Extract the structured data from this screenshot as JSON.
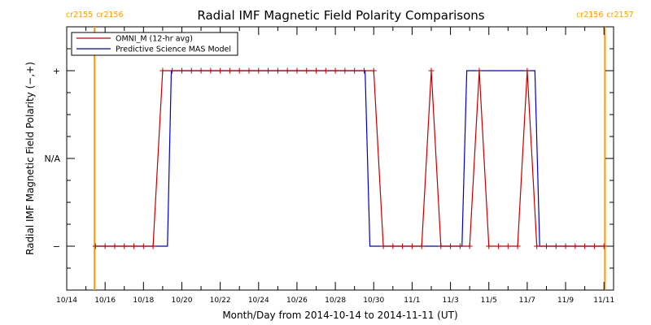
{
  "chart_data": {
    "type": "line",
    "title": "Radial IMF Magnetic Field Polarity Comparisons",
    "xlabel": "Month/Day from 2014-10-14 to 2014-11-11 (UT)",
    "ylabel": "Radial IMF Magnetic Field Polarity (−,+)",
    "x_unit": "days since 2014-10-14 00:00 UT",
    "xlim": [
      0,
      28.5
    ],
    "ylim": [
      -1.5,
      1.5
    ],
    "x_ticks": [
      {
        "x": 0,
        "label": "10/14"
      },
      {
        "x": 2,
        "label": "10/16"
      },
      {
        "x": 4,
        "label": "10/18"
      },
      {
        "x": 6,
        "label": "10/20"
      },
      {
        "x": 8,
        "label": "10/22"
      },
      {
        "x": 10,
        "label": "10/24"
      },
      {
        "x": 12,
        "label": "10/26"
      },
      {
        "x": 14,
        "label": "10/28"
      },
      {
        "x": 16,
        "label": "10/30"
      },
      {
        "x": 18,
        "label": "11/1"
      },
      {
        "x": 20,
        "label": "11/3"
      },
      {
        "x": 22,
        "label": "11/5"
      },
      {
        "x": 24,
        "label": "11/7"
      },
      {
        "x": 26,
        "label": "11/9"
      },
      {
        "x": 28,
        "label": "11/11"
      }
    ],
    "y_ticks": [
      {
        "y": 1,
        "label": "+"
      },
      {
        "y": 0,
        "label": "N/A"
      },
      {
        "y": -1,
        "label": "−"
      }
    ],
    "series": [
      {
        "name": "OMNI_M (12-hr avg)",
        "color": "#c00000",
        "markers": "plus",
        "x": [
          1.5,
          2.0,
          2.5,
          3.0,
          3.5,
          4.0,
          4.5,
          5.0,
          5.5,
          6.0,
          6.5,
          7.0,
          7.5,
          8.0,
          8.5,
          9.0,
          9.5,
          10.0,
          10.5,
          11.0,
          11.5,
          12.0,
          12.5,
          13.0,
          13.5,
          14.0,
          14.5,
          15.0,
          15.5,
          16.0,
          16.5,
          17.0,
          17.5,
          18.0,
          18.5,
          19.0,
          19.5,
          20.0,
          20.5,
          21.0,
          21.5,
          22.0,
          22.5,
          23.0,
          23.5,
          24.0,
          24.5,
          25.0,
          25.5,
          26.0,
          26.5,
          27.0,
          27.5,
          28.0
        ],
        "y": [
          -1,
          -1,
          -1,
          -1,
          -1,
          -1,
          -1,
          1,
          1,
          1,
          1,
          1,
          1,
          1,
          1,
          1,
          1,
          1,
          1,
          1,
          1,
          1,
          1,
          1,
          1,
          1,
          1,
          1,
          1,
          1,
          -1,
          -1,
          -1,
          -1,
          -1,
          1,
          -1,
          -1,
          -1,
          -1,
          1,
          -1,
          -1,
          -1,
          -1,
          1,
          -1,
          -1,
          -1,
          -1,
          -1,
          -1,
          -1,
          -1
        ]
      },
      {
        "name": "Predictive Science MAS Model",
        "color": "#0000c0",
        "x": [
          1.5,
          5.25,
          5.45,
          15.55,
          15.8,
          20.6,
          20.85,
          24.4,
          24.65,
          28.0
        ],
        "y": [
          -1,
          -1,
          1,
          1,
          -1,
          -1,
          1,
          1,
          -1,
          -1
        ]
      }
    ],
    "carrington_markers": [
      {
        "x": 1.45,
        "label_left": "cr2155",
        "label_right": "cr2156"
      },
      {
        "x": 28.05,
        "label_left": "cr2156",
        "label_right": "cr2157"
      }
    ],
    "carrington_color": "#ff9900",
    "legend_position": "top-left",
    "grid": false
  }
}
